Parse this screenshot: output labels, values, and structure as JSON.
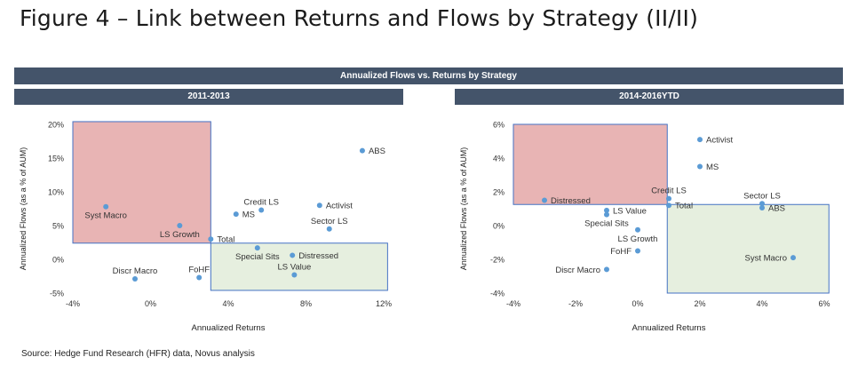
{
  "title": "Figure 4 – Link between Returns and Flows by Strategy (II/II)",
  "header": "Annualized Flows vs. Returns by Strategy",
  "source": "Source: Hedge Fund Research (HFR) data, Novus analysis",
  "colors": {
    "header_bar": "#44546a",
    "point": "#5b9bd5",
    "red_zone_fill": "#e8b4b4",
    "red_zone_border": "#4472c4",
    "green_zone_fill": "#e6efdf",
    "green_zone_border": "#4472c4"
  },
  "chart_data": [
    {
      "type": "scatter",
      "title": "2011-2013",
      "xlabel": "Annualized Returns",
      "ylabel": "Annualized Flows (as a % of AUM)",
      "xlim": [
        -4,
        12
      ],
      "ylim": [
        -5,
        20
      ],
      "xticks": [
        -4,
        0,
        4,
        8,
        12
      ],
      "xtick_labels": [
        "-4%",
        "0%",
        "4%",
        "8%",
        "12%"
      ],
      "yticks": [
        -5,
        0,
        5,
        10,
        15,
        20
      ],
      "ytick_labels": [
        "-5%",
        "0%",
        "5%",
        "10%",
        "15%",
        "20%"
      ],
      "grid": false,
      "regions": [
        {
          "kind": "red",
          "x": [
            -4,
            3.1
          ],
          "y": [
            2.4,
            20.4
          ]
        },
        {
          "kind": "green",
          "x": [
            3.1,
            12.2
          ],
          "y": [
            -4.6,
            2.4
          ]
        }
      ],
      "points": [
        {
          "label": "Syst Macro",
          "x": -2.3,
          "y": 7.8,
          "label_pos": "below"
        },
        {
          "label": "LS Growth",
          "x": 1.5,
          "y": 5.0,
          "label_pos": "below"
        },
        {
          "label": "Total",
          "x": 3.1,
          "y": 3.0,
          "label_pos": "right"
        },
        {
          "label": "MS",
          "x": 4.4,
          "y": 6.7,
          "label_pos": "right"
        },
        {
          "label": "Credit LS",
          "x": 5.7,
          "y": 7.3,
          "label_pos": "above"
        },
        {
          "label": "Activist",
          "x": 8.7,
          "y": 8.0,
          "label_pos": "right"
        },
        {
          "label": "ABS",
          "x": 10.9,
          "y": 16.1,
          "label_pos": "right"
        },
        {
          "label": "Sector LS",
          "x": 9.2,
          "y": 4.5,
          "label_pos": "above"
        },
        {
          "label": "Special Sits",
          "x": 5.5,
          "y": 1.7,
          "label_pos": "below"
        },
        {
          "label": "Distressed",
          "x": 7.3,
          "y": 0.6,
          "label_pos": "right"
        },
        {
          "label": "LS Value",
          "x": 7.4,
          "y": -2.3,
          "label_pos": "above"
        },
        {
          "label": "Discr Macro",
          "x": -0.8,
          "y": -2.9,
          "label_pos": "above"
        },
        {
          "label": "FoHF",
          "x": 2.5,
          "y": -2.7,
          "label_pos": "above"
        }
      ]
    },
    {
      "type": "scatter",
      "title": "2014-2016YTD",
      "xlabel": "Annualized Returns",
      "ylabel": "Annualized Flows (as a % of AUM)",
      "xlim": [
        -4,
        6
      ],
      "ylim": [
        -4,
        6
      ],
      "xticks": [
        -4,
        -2,
        0,
        2,
        4,
        6
      ],
      "xtick_labels": [
        "-4%",
        "-2%",
        "0%",
        "2%",
        "4%",
        "6%"
      ],
      "yticks": [
        -4,
        -2,
        0,
        2,
        4,
        6
      ],
      "ytick_labels": [
        "-4%",
        "-2%",
        "0%",
        "2%",
        "4%",
        "6%"
      ],
      "grid": false,
      "regions": [
        {
          "kind": "red",
          "x": [
            -4,
            0.95
          ],
          "y": [
            1.25,
            6
          ]
        },
        {
          "kind": "green",
          "x": [
            0.95,
            6.15
          ],
          "y": [
            -4,
            1.25
          ]
        }
      ],
      "points": [
        {
          "label": "Activist",
          "x": 2.0,
          "y": 5.1,
          "label_pos": "right"
        },
        {
          "label": "MS",
          "x": 2.0,
          "y": 3.5,
          "label_pos": "right"
        },
        {
          "label": "Credit LS",
          "x": 1.0,
          "y": 1.6,
          "label_pos": "above"
        },
        {
          "label": "Total",
          "x": 1.0,
          "y": 1.2,
          "label_pos": "right"
        },
        {
          "label": "Distressed",
          "x": -3.0,
          "y": 1.5,
          "label_pos": "right"
        },
        {
          "label": "LS Value",
          "x": -1.0,
          "y": 0.9,
          "label_pos": "right"
        },
        {
          "label": "Special Sits",
          "x": -1.0,
          "y": 0.65,
          "label_pos": "below"
        },
        {
          "label": "LS Growth",
          "x": 0.0,
          "y": -0.25,
          "label_pos": "below"
        },
        {
          "label": "FoHF",
          "x": 0.0,
          "y": -1.5,
          "label_pos": "left"
        },
        {
          "label": "Discr Macro",
          "x": -1.0,
          "y": -2.6,
          "label_pos": "left"
        },
        {
          "label": "Sector LS",
          "x": 4.0,
          "y": 1.3,
          "label_pos": "above"
        },
        {
          "label": "ABS",
          "x": 4.0,
          "y": 1.05,
          "label_pos": "right"
        },
        {
          "label": "Syst Macro",
          "x": 5.0,
          "y": -1.9,
          "label_pos": "left"
        }
      ]
    }
  ]
}
